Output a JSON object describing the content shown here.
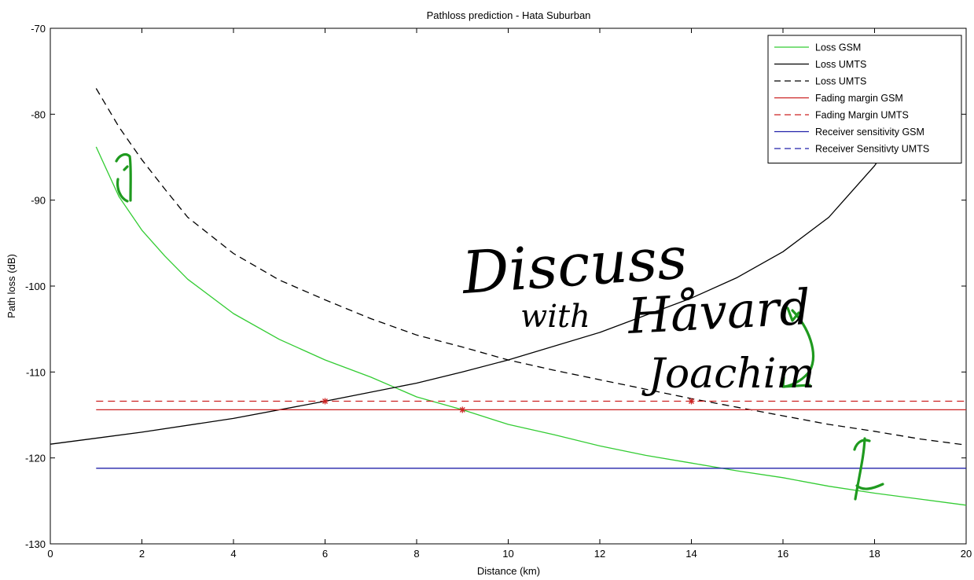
{
  "chart_data": {
    "type": "line",
    "title": "Pathloss prediction - Hata Suburban",
    "xlabel": "Distance (km)",
    "ylabel": "Path loss (dB)",
    "xlim": [
      0,
      20
    ],
    "ylim": [
      -130,
      -70
    ],
    "xticks": [
      0,
      2,
      4,
      6,
      8,
      10,
      12,
      14,
      16,
      18,
      20
    ],
    "yticks": [
      -70,
      -80,
      -90,
      -100,
      -110,
      -120,
      -130
    ],
    "grid": false,
    "legend_position": "top-right",
    "series": [
      {
        "name": "Loss GSM",
        "color": "#33cc33",
        "style": "solid",
        "points": [
          [
            1,
            -83.8
          ],
          [
            1.5,
            -89.6
          ],
          [
            2,
            -93.5
          ],
          [
            2.5,
            -96.5
          ],
          [
            3,
            -99.2
          ],
          [
            4,
            -103.2
          ],
          [
            5,
            -106.2
          ],
          [
            6,
            -108.6
          ],
          [
            7,
            -110.6
          ],
          [
            8,
            -112.9
          ],
          [
            9,
            -114.4
          ],
          [
            10,
            -116.1
          ],
          [
            11,
            -117.3
          ],
          [
            12,
            -118.6
          ],
          [
            13,
            -119.7
          ],
          [
            14,
            -120.6
          ],
          [
            15,
            -121.5
          ],
          [
            16,
            -122.3
          ],
          [
            17,
            -123.3
          ],
          [
            18,
            -124.1
          ],
          [
            19,
            -124.8
          ],
          [
            20,
            -125.5
          ]
        ]
      },
      {
        "name": "Loss UMTS",
        "color": "#000000",
        "style": "solid",
        "points": [
          [
            0,
            -118.4
          ],
          [
            2,
            -117
          ],
          [
            4,
            -115.4
          ],
          [
            6,
            -113.4
          ],
          [
            8,
            -111.3
          ],
          [
            9,
            -110
          ],
          [
            10,
            -108.6
          ],
          [
            12,
            -105.4
          ],
          [
            14,
            -101.4
          ],
          [
            15,
            -99
          ],
          [
            16,
            -96
          ],
          [
            17,
            -92
          ],
          [
            18,
            -86
          ],
          [
            18.8,
            -80
          ]
        ]
      },
      {
        "name": "Loss UMTS",
        "color": "#000000",
        "style": "dashed",
        "points": [
          [
            1,
            -77
          ],
          [
            1.5,
            -81.5
          ],
          [
            2,
            -85.3
          ],
          [
            2.5,
            -88.7
          ],
          [
            3,
            -92
          ],
          [
            4,
            -96.2
          ],
          [
            5,
            -99.3
          ],
          [
            6,
            -101.6
          ],
          [
            7,
            -103.8
          ],
          [
            8,
            -105.7
          ],
          [
            9,
            -107.1
          ],
          [
            10,
            -108.6
          ],
          [
            11,
            -109.8
          ],
          [
            12,
            -110.9
          ],
          [
            13,
            -112
          ],
          [
            14,
            -113.1
          ],
          [
            15,
            -114.1
          ],
          [
            16,
            -115.1
          ],
          [
            17,
            -116.1
          ],
          [
            18,
            -116.9
          ],
          [
            19,
            -117.8
          ],
          [
            20,
            -118.5
          ]
        ]
      },
      {
        "name": "Fading margin GSM",
        "color": "#cc2222",
        "style": "solid",
        "points": [
          [
            1,
            -114.4
          ],
          [
            20,
            -114.4
          ]
        ]
      },
      {
        "name": "Fading Margin UMTS",
        "color": "#cc2222",
        "style": "dashed",
        "points": [
          [
            1,
            -113.4
          ],
          [
            20,
            -113.4
          ]
        ]
      },
      {
        "name": "Receiver sensitivity GSM",
        "color": "#2222aa",
        "style": "solid",
        "points": [
          [
            1,
            -121.2
          ],
          [
            20,
            -121.2
          ]
        ]
      },
      {
        "name": "Receiver Sensitivty UMTS",
        "color": "#2222aa",
        "style": "dashed",
        "points": []
      }
    ],
    "markers": {
      "color": "#cc2222",
      "symbol": "*",
      "points": [
        [
          6,
          -113.4
        ],
        [
          9,
          -114.4
        ],
        [
          14,
          -113.4
        ]
      ]
    },
    "handwritten_annotations": {
      "color": "#1f9a1f",
      "lines": [
        "Discuss",
        "with",
        "Håvard",
        "Joachim"
      ]
    }
  }
}
